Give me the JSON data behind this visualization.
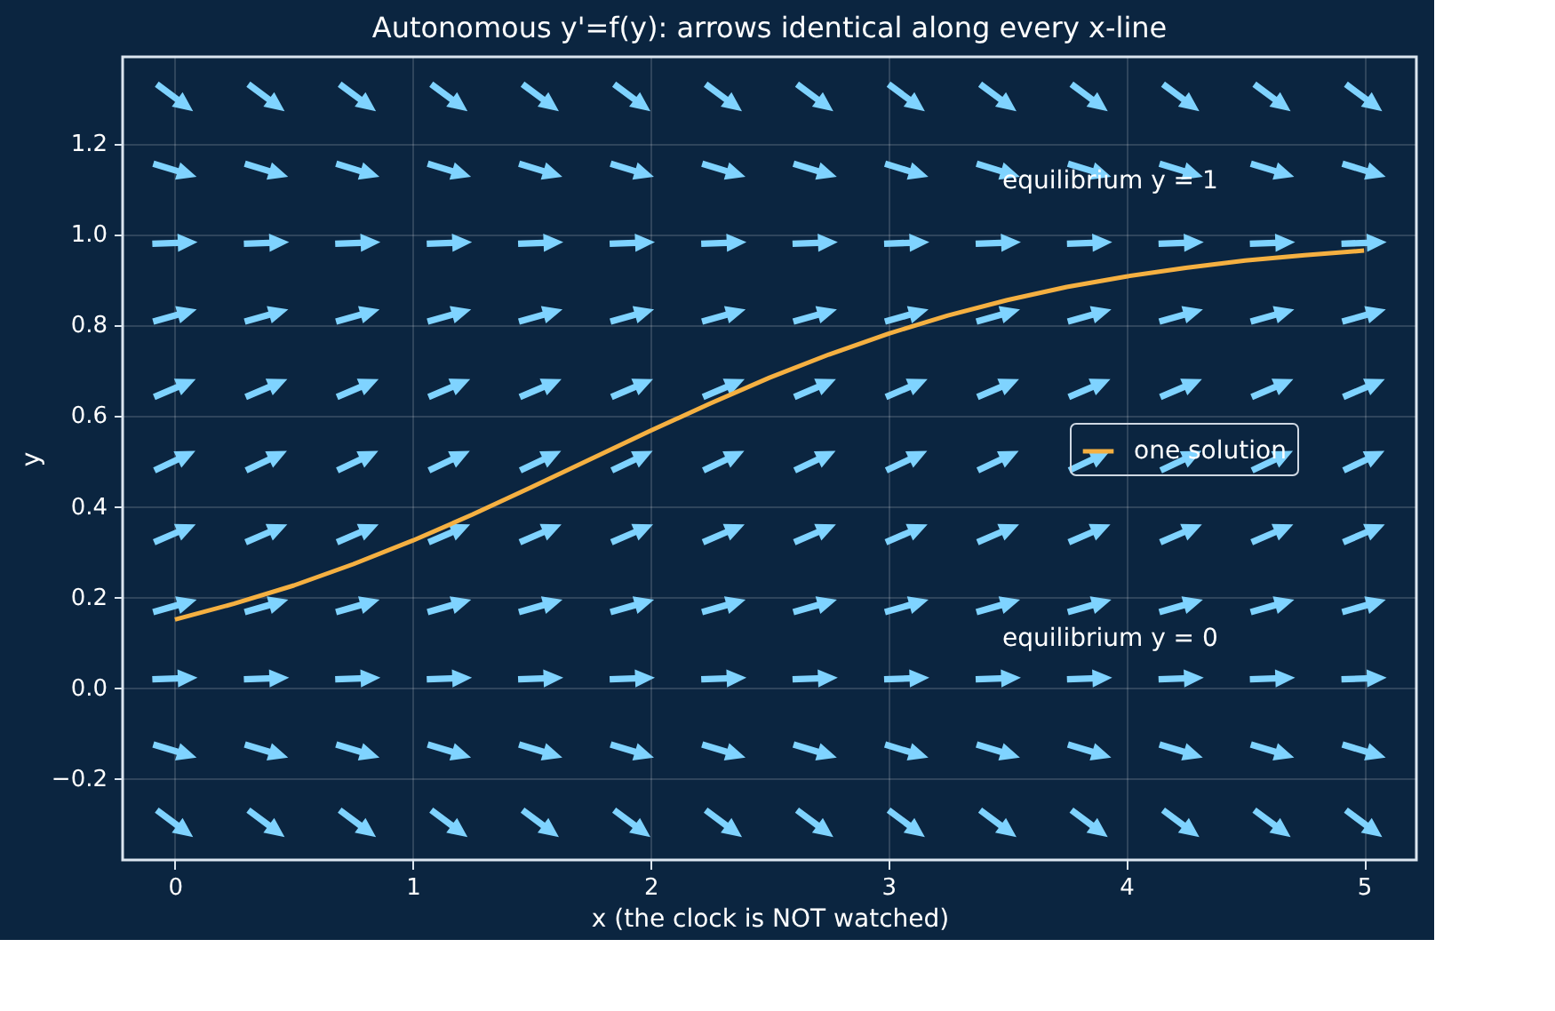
{
  "chart_data": {
    "type": "line",
    "title": "Autonomous y'=f(y): arrows identical along every x-line",
    "xlabel": "x  (the clock is NOT watched)",
    "ylabel": "y",
    "xlim": [
      -0.22,
      5.22
    ],
    "ylim": [
      -0.38,
      1.39
    ],
    "xticks": [
      0,
      1,
      2,
      3,
      4,
      5
    ],
    "yticks": [
      -0.2,
      {
        "value": 0,
        "label": "0.0"
      },
      0.2,
      0.4,
      0.6,
      0.8,
      {
        "value": 1,
        "label": "1.0"
      },
      1.2
    ],
    "grid": true,
    "legend": "right",
    "series": [
      {
        "name": "one solution",
        "color": "#f5b041",
        "x": [
          0,
          0.25,
          0.5,
          0.75,
          1,
          1.25,
          1.5,
          1.75,
          2,
          2.25,
          2.5,
          2.75,
          3,
          3.25,
          3.5,
          3.75,
          4,
          4.25,
          4.5,
          4.75,
          5
        ],
        "values": [
          0.15,
          0.185,
          0.225,
          0.272,
          0.324,
          0.381,
          0.442,
          0.504,
          0.566,
          0.626,
          0.683,
          0.734,
          0.78,
          0.82,
          0.854,
          0.883,
          0.906,
          0.925,
          0.941,
          0.953,
          0.963
        ]
      },
      {
        "color": "#7fd3ff",
        "type": "scatter",
        "x": [
          0,
          0.385,
          0.769,
          1.154,
          1.538,
          1.923,
          2.308,
          2.692,
          3.077,
          3.462,
          3.846,
          4.231,
          4.615,
          5.0,
          0,
          0.385,
          0.769,
          1.154,
          1.538,
          1.923,
          2.308,
          2.692,
          3.077,
          3.462,
          3.846,
          4.231,
          4.615,
          5.0,
          0,
          0.385,
          0.769,
          1.154,
          1.538,
          1.923,
          2.308,
          2.692,
          3.077,
          3.462,
          3.846,
          4.231,
          4.615,
          5.0,
          0,
          0.385,
          0.769,
          1.154,
          1.538,
          1.923,
          2.308,
          2.692,
          3.077,
          3.462,
          3.846,
          4.231,
          4.615,
          5.0,
          0,
          0.385,
          0.769,
          1.154,
          1.538,
          1.923,
          2.308,
          2.692,
          3.077,
          3.462,
          3.846,
          4.231,
          4.615,
          5.0,
          0,
          0.385,
          0.769,
          1.154,
          1.538,
          1.923,
          2.308,
          2.692,
          3.077,
          3.462,
          3.846,
          4.231,
          4.615,
          5.0,
          0,
          0.385,
          0.769,
          1.154,
          1.538,
          1.923,
          2.308,
          2.692,
          3.077,
          3.462,
          3.846,
          4.231,
          4.615,
          5.0,
          0,
          0.385,
          0.769,
          1.154,
          1.538,
          1.923,
          2.308,
          2.692,
          3.077,
          3.462,
          3.846,
          4.231,
          4.615,
          5.0,
          0,
          0.385,
          0.769,
          1.154,
          1.538,
          1.923,
          2.308,
          2.692,
          3.077,
          3.462,
          3.846,
          4.231,
          4.615,
          5.0,
          0,
          0.385,
          0.769,
          1.154,
          1.538,
          1.923,
          2.308,
          2.692,
          3.077,
          3.462,
          3.846,
          4.231,
          4.615,
          5.0,
          0,
          0.385,
          0.769,
          1.154,
          1.538,
          1.923,
          2.308,
          2.692,
          3.077,
          3.462,
          3.846,
          4.231,
          4.615,
          5.0
        ],
        "values": [
          -0.3,
          -0.3,
          -0.3,
          -0.3,
          -0.3,
          -0.3,
          -0.3,
          -0.3,
          -0.3,
          -0.3,
          -0.3,
          -0.3,
          -0.3,
          -0.3,
          -0.14,
          -0.14,
          -0.14,
          -0.14,
          -0.14,
          -0.14,
          -0.14,
          -0.14,
          -0.14,
          -0.14,
          -0.14,
          -0.14,
          -0.14,
          -0.14,
          0.02,
          0.02,
          0.02,
          0.02,
          0.02,
          0.02,
          0.02,
          0.02,
          0.02,
          0.02,
          0.02,
          0.02,
          0.02,
          0.02,
          0.18,
          0.18,
          0.18,
          0.18,
          0.18,
          0.18,
          0.18,
          0.18,
          0.18,
          0.18,
          0.18,
          0.18,
          0.18,
          0.18,
          0.34,
          0.34,
          0.34,
          0.34,
          0.34,
          0.34,
          0.34,
          0.34,
          0.34,
          0.34,
          0.34,
          0.34,
          0.34,
          0.34,
          0.5,
          0.5,
          0.5,
          0.5,
          0.5,
          0.5,
          0.5,
          0.5,
          0.5,
          0.5,
          0.5,
          0.5,
          0.5,
          0.5,
          0.66,
          0.66,
          0.66,
          0.66,
          0.66,
          0.66,
          0.66,
          0.66,
          0.66,
          0.66,
          0.66,
          0.66,
          0.66,
          0.66,
          0.82,
          0.82,
          0.82,
          0.82,
          0.82,
          0.82,
          0.82,
          0.82,
          0.82,
          0.82,
          0.82,
          0.82,
          0.82,
          0.82,
          0.98,
          0.98,
          0.98,
          0.98,
          0.98,
          0.98,
          0.98,
          0.98,
          0.98,
          0.98,
          0.98,
          0.98,
          0.98,
          0.98,
          1.14,
          1.14,
          1.14,
          1.14,
          1.14,
          1.14,
          1.14,
          1.14,
          1.14,
          1.14,
          1.14,
          1.14,
          1.14,
          1.14,
          1.3,
          1.3,
          1.3,
          1.3,
          1.3,
          1.3,
          1.3,
          1.3,
          1.3,
          1.3,
          1.3,
          1.3,
          1.3,
          1.3
        ]
      }
    ],
    "annotations": [
      "equilibrium y = 1",
      "equilibrium y = 0"
    ]
  }
}
